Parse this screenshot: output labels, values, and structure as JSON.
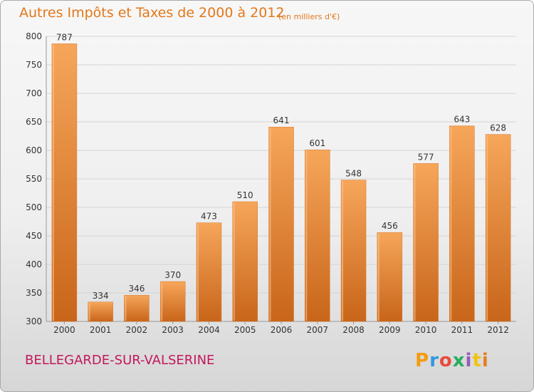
{
  "header": {
    "title": "Autres Impôts et Taxes de 2000 à 2012",
    "unit": "(en milliers d'€)"
  },
  "footer": {
    "commune": "BELLEGARDE-SUR-VALSERINE",
    "logo_text": "Proxiti",
    "logo_colors": [
      "#f39c12",
      "#3498db",
      "#e74c3c",
      "#27ae60",
      "#9b59b6",
      "#f1c40f",
      "#e67e22"
    ]
  },
  "colors": {
    "bar": "#ef8f38",
    "bar_light": "#f6a65a",
    "bar_dark": "#c8651a",
    "title": "#e2781a",
    "commune": "#c2185b"
  },
  "chart_data": {
    "type": "bar",
    "categories": [
      "2000",
      "2001",
      "2002",
      "2003",
      "2004",
      "2005",
      "2006",
      "2007",
      "2008",
      "2009",
      "2010",
      "2011",
      "2012"
    ],
    "values": [
      787,
      334,
      346,
      370,
      473,
      510,
      641,
      601,
      548,
      456,
      577,
      643,
      628
    ],
    "title": "Autres Impôts et Taxes de 2000 à 2012",
    "ylim": [
      300,
      800
    ],
    "yticks": [
      300,
      350,
      400,
      450,
      500,
      550,
      600,
      650,
      700,
      750,
      800
    ],
    "grid": true
  }
}
